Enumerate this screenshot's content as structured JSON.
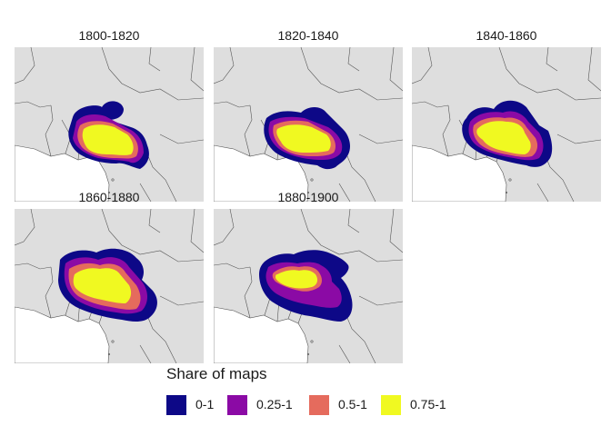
{
  "panels": [
    {
      "title": "1800-1820",
      "shape": "p1"
    },
    {
      "title": "1820-1840",
      "shape": "p2"
    },
    {
      "title": "1840-1860",
      "shape": "p3"
    },
    {
      "title": "1860-1880",
      "shape": "p4"
    },
    {
      "title": "1880-1900",
      "shape": "p5"
    }
  ],
  "legend": {
    "title": "Share of maps",
    "items": [
      {
        "label": "0-1",
        "color": "#0d0887"
      },
      {
        "label": "0.25-1",
        "color": "#8b0aa5"
      },
      {
        "label": "0.5-1",
        "color": "#e56b5d"
      },
      {
        "label": "0.75-1",
        "color": "#f0f921"
      }
    ]
  },
  "colors": {
    "land": "#dedede",
    "sea": "#ffffff",
    "border": "#555555"
  }
}
